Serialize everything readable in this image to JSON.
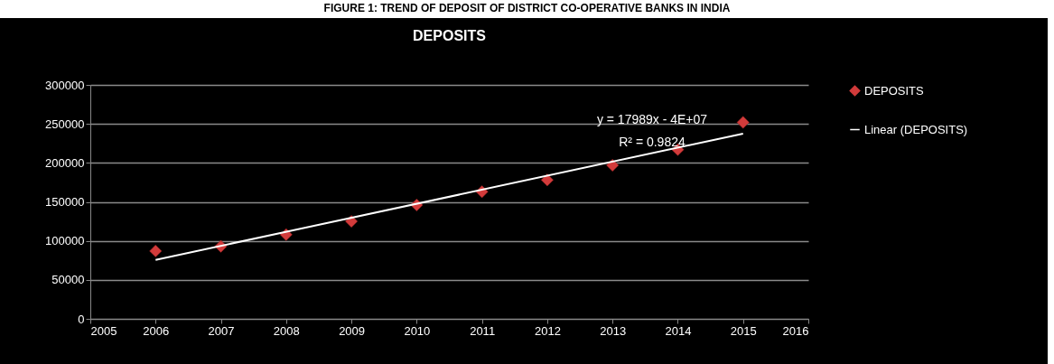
{
  "chart_data": {
    "type": "scatter",
    "title": "FIGURE 1: TREND OF DEPOSIT OF DISTRICT CO-OPERATIVE BANKS IN INDIA",
    "subtitle": "DEPOSITS",
    "x": [
      2006,
      2007,
      2008,
      2009,
      2010,
      2011,
      2012,
      2013,
      2014,
      2015
    ],
    "series": [
      {
        "name": "DEPOSITS",
        "color": "#d23b3b",
        "marker": "diamond",
        "values": [
          87000,
          93000,
          108000,
          125000,
          146000,
          163000,
          178000,
          197000,
          217000,
          252000
        ]
      },
      {
        "name": "Linear (DEPOSITS)",
        "type": "line",
        "color": "#ffffff",
        "line_style": "solid",
        "x": [
          2006,
          2015
        ],
        "values": [
          75650,
          237550
        ]
      }
    ],
    "annotations": [
      "y = 17989x - 4E+07",
      "R² = 0.9824"
    ],
    "xlim": [
      2005,
      2016
    ],
    "xticks": [
      2005,
      2006,
      2007,
      2008,
      2009,
      2010,
      2011,
      2012,
      2013,
      2014,
      2015,
      2016
    ],
    "ylim": [
      0,
      300000
    ],
    "yticks": [
      0,
      50000,
      100000,
      150000,
      200000,
      250000,
      300000
    ],
    "grid": "y",
    "legend": "right"
  }
}
